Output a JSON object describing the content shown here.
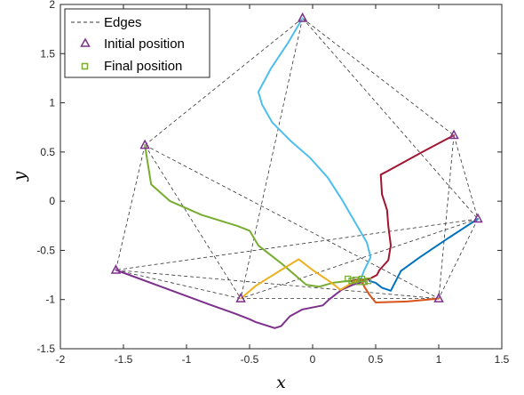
{
  "chart_data": {
    "type": "line",
    "xlabel": "x",
    "ylabel": "y",
    "xlim": [
      -2,
      1.5
    ],
    "ylim": [
      -1.5,
      2
    ],
    "xticks": [
      -2,
      -1.5,
      -1,
      -0.5,
      0,
      0.5,
      1,
      1.5
    ],
    "yticks": [
      -1.5,
      -1,
      -0.5,
      0,
      0.5,
      1,
      1.5,
      2
    ],
    "xtick_labels": [
      "-2",
      "-1.5",
      "-1",
      "-0.5",
      "0",
      "0.5",
      "1",
      "1.5"
    ],
    "ytick_labels": [
      "-1.5",
      "-1",
      "-0.5",
      "0",
      "0.5",
      "1",
      "1.5",
      "2"
    ],
    "grid": false,
    "legend_position": "top-left",
    "legend": {
      "edges": "Edges",
      "initial": "Initial position",
      "final": "Final position"
    },
    "colors": {
      "edges": "#333333",
      "initial_marker": "#7e2f8e",
      "final_marker": "#77ac30"
    },
    "initial_positions": [
      {
        "x": -0.08,
        "y": 1.86
      },
      {
        "x": -1.33,
        "y": 0.57
      },
      {
        "x": 1.12,
        "y": 0.67
      },
      {
        "x": 1.31,
        "y": -0.18
      },
      {
        "x": -1.56,
        "y": -0.7
      },
      {
        "x": -0.57,
        "y": -0.99
      },
      {
        "x": 1.0,
        "y": -0.99
      }
    ],
    "final_positions": [
      {
        "x": 0.28,
        "y": -0.79
      },
      {
        "x": 0.31,
        "y": -0.81
      },
      {
        "x": 0.34,
        "y": -0.8
      },
      {
        "x": 0.37,
        "y": -0.82
      },
      {
        "x": 0.39,
        "y": -0.79
      },
      {
        "x": 0.41,
        "y": -0.82
      },
      {
        "x": 0.44,
        "y": -0.81
      }
    ],
    "edges": [
      [
        0,
        1
      ],
      [
        0,
        2
      ],
      [
        0,
        3
      ],
      [
        0,
        5
      ],
      [
        1,
        4
      ],
      [
        1,
        5
      ],
      [
        1,
        6
      ],
      [
        2,
        3
      ],
      [
        2,
        6
      ],
      [
        3,
        4
      ],
      [
        3,
        5
      ],
      [
        3,
        6
      ],
      [
        4,
        5
      ],
      [
        4,
        6
      ],
      [
        5,
        6
      ]
    ],
    "series": [
      {
        "color": "#4dbeee",
        "points": [
          [
            -0.08,
            1.86
          ],
          [
            -0.2,
            1.6
          ],
          [
            -0.33,
            1.35
          ],
          [
            -0.43,
            1.11
          ],
          [
            -0.4,
            0.98
          ],
          [
            -0.32,
            0.8
          ],
          [
            -0.18,
            0.62
          ],
          [
            -0.02,
            0.44
          ],
          [
            0.12,
            0.24
          ],
          [
            0.23,
            0.02
          ],
          [
            0.33,
            -0.2
          ],
          [
            0.43,
            -0.42
          ],
          [
            0.46,
            -0.57
          ],
          [
            0.41,
            -0.7
          ],
          [
            0.38,
            -0.8
          ]
        ]
      },
      {
        "color": "#77ac30",
        "points": [
          [
            -1.33,
            0.57
          ],
          [
            -1.28,
            0.17
          ],
          [
            -1.13,
            0.0
          ],
          [
            -0.88,
            -0.14
          ],
          [
            -0.6,
            -0.25
          ],
          [
            -0.5,
            -0.3
          ],
          [
            -0.43,
            -0.45
          ],
          [
            -0.25,
            -0.63
          ],
          [
            -0.05,
            -0.85
          ],
          [
            0.05,
            -0.87
          ],
          [
            0.16,
            -0.83
          ],
          [
            0.28,
            -0.81
          ],
          [
            0.33,
            -0.82
          ],
          [
            0.38,
            -0.8
          ],
          [
            0.42,
            -0.82
          ]
        ]
      },
      {
        "color": "#a2142f",
        "points": [
          [
            1.12,
            0.67
          ],
          [
            0.87,
            0.5
          ],
          [
            0.6,
            0.31
          ],
          [
            0.54,
            0.27
          ],
          [
            0.55,
            0.07
          ],
          [
            0.59,
            -0.09
          ],
          [
            0.6,
            -0.25
          ],
          [
            0.62,
            -0.45
          ],
          [
            0.6,
            -0.6
          ],
          [
            0.53,
            -0.7
          ],
          [
            0.51,
            -0.75
          ],
          [
            0.45,
            -0.79
          ],
          [
            0.42,
            -0.8
          ],
          [
            0.37,
            -0.79
          ],
          [
            0.31,
            -0.81
          ]
        ]
      },
      {
        "color": "#0072bd",
        "points": [
          [
            1.31,
            -0.18
          ],
          [
            1.07,
            -0.38
          ],
          [
            0.85,
            -0.57
          ],
          [
            0.7,
            -0.71
          ],
          [
            0.62,
            -0.91
          ],
          [
            0.55,
            -0.88
          ],
          [
            0.5,
            -0.83
          ],
          [
            0.45,
            -0.81
          ]
        ]
      },
      {
        "color": "#7e2f8e",
        "points": [
          [
            -1.56,
            -0.7
          ],
          [
            -1.2,
            -0.87
          ],
          [
            -0.82,
            -1.05
          ],
          [
            -0.6,
            -1.15
          ],
          [
            -0.5,
            -1.2
          ],
          [
            -0.45,
            -1.23
          ],
          [
            -0.35,
            -1.27
          ],
          [
            -0.3,
            -1.29
          ],
          [
            -0.25,
            -1.27
          ],
          [
            -0.18,
            -1.17
          ],
          [
            -0.08,
            -1.1
          ],
          [
            0.08,
            -1.06
          ],
          [
            0.13,
            -1.0
          ],
          [
            0.23,
            -0.9
          ],
          [
            0.32,
            -0.85
          ],
          [
            0.4,
            -0.82
          ]
        ]
      },
      {
        "color": "#edb120",
        "points": [
          [
            -0.57,
            -0.99
          ],
          [
            -0.45,
            -0.86
          ],
          [
            -0.25,
            -0.7
          ],
          [
            -0.11,
            -0.59
          ],
          [
            0.0,
            -0.7
          ],
          [
            0.14,
            -0.82
          ],
          [
            0.22,
            -0.9
          ],
          [
            0.3,
            -0.84
          ],
          [
            0.36,
            -0.8
          ]
        ]
      },
      {
        "color": "#d95319",
        "points": [
          [
            1.0,
            -0.99
          ],
          [
            0.75,
            -1.02
          ],
          [
            0.5,
            -1.03
          ],
          [
            0.45,
            -0.95
          ],
          [
            0.41,
            -0.87
          ],
          [
            0.39,
            -0.81
          ],
          [
            0.35,
            -0.8
          ]
        ]
      }
    ]
  }
}
